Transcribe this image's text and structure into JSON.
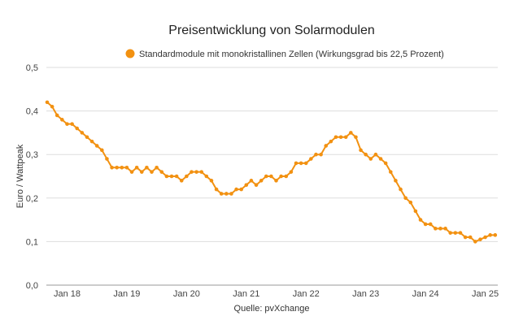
{
  "chart_data": {
    "type": "line",
    "title": "Preisentwicklung von Solarmodulen",
    "xlabel": "Quelle: pvXchange",
    "ylabel": "Euro / Wattpeak",
    "ylim": [
      0,
      0.5
    ],
    "yticks": [
      "0,0",
      "0,1",
      "0,2",
      "0,3",
      "0,4",
      "0,5"
    ],
    "xticks": [
      "Jan 18",
      "Jan 19",
      "Jan 20",
      "Jan 21",
      "Jan 22",
      "Jan 23",
      "Jan 24",
      "Jan 25"
    ],
    "grid": true,
    "legend_position": "top",
    "color": "#F29111",
    "x_start": "2017-09",
    "series": [
      {
        "name": "Standardmodule mit monokristallinen Zellen (Wirkungsgrad bis 22,5 Prozent)",
        "values": [
          0.42,
          0.41,
          0.39,
          0.38,
          0.37,
          0.37,
          0.36,
          0.35,
          0.34,
          0.33,
          0.32,
          0.31,
          0.29,
          0.27,
          0.27,
          0.27,
          0.27,
          0.26,
          0.27,
          0.26,
          0.27,
          0.26,
          0.27,
          0.26,
          0.25,
          0.25,
          0.25,
          0.24,
          0.25,
          0.26,
          0.26,
          0.26,
          0.25,
          0.24,
          0.22,
          0.21,
          0.21,
          0.21,
          0.22,
          0.22,
          0.23,
          0.24,
          0.23,
          0.24,
          0.25,
          0.25,
          0.24,
          0.25,
          0.25,
          0.26,
          0.28,
          0.28,
          0.28,
          0.29,
          0.3,
          0.3,
          0.32,
          0.33,
          0.34,
          0.34,
          0.34,
          0.35,
          0.34,
          0.31,
          0.3,
          0.29,
          0.3,
          0.29,
          0.28,
          0.26,
          0.24,
          0.22,
          0.2,
          0.19,
          0.17,
          0.15,
          0.14,
          0.14,
          0.13,
          0.13,
          0.13,
          0.12,
          0.12,
          0.12,
          0.11,
          0.11,
          0.1,
          0.105,
          0.11,
          0.115,
          0.115
        ]
      }
    ]
  }
}
